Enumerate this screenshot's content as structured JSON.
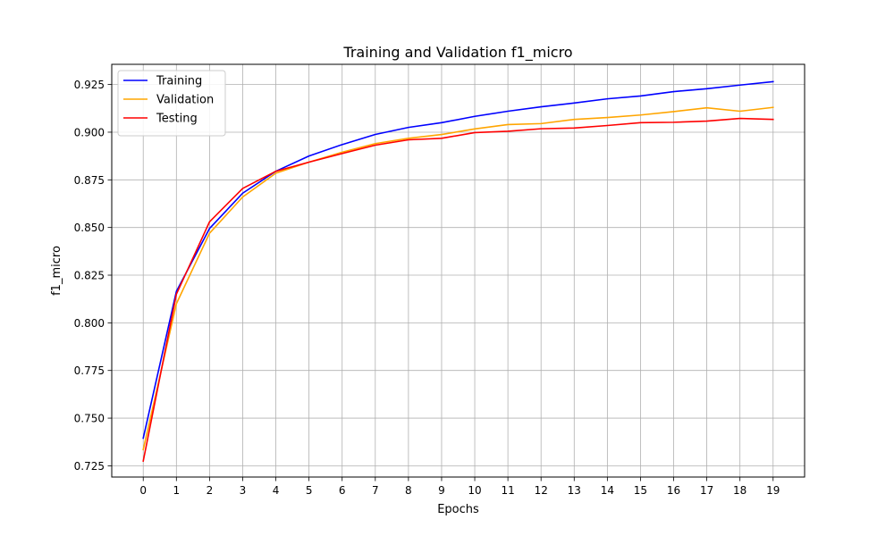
{
  "chart_data": {
    "type": "line",
    "title": "Training and Validation f1_micro",
    "xlabel": "Epochs",
    "ylabel": "f1_micro",
    "x": [
      0,
      1,
      2,
      3,
      4,
      5,
      6,
      7,
      8,
      9,
      10,
      11,
      12,
      13,
      14,
      15,
      16,
      17,
      18,
      19
    ],
    "x_ticks": [
      "0",
      "1",
      "2",
      "3",
      "4",
      "5",
      "6",
      "7",
      "8",
      "9",
      "10",
      "11",
      "12",
      "13",
      "14",
      "15",
      "16",
      "17",
      "18",
      "19"
    ],
    "y_ticks": [
      "0.725",
      "0.750",
      "0.775",
      "0.800",
      "0.825",
      "0.850",
      "0.875",
      "0.900",
      "0.925"
    ],
    "y_tick_values": [
      0.725,
      0.75,
      0.775,
      0.8,
      0.825,
      0.85,
      0.875,
      0.9,
      0.925
    ],
    "xlim": [
      -0.95,
      19.95
    ],
    "ylim": [
      0.7191,
      0.9356
    ],
    "grid": true,
    "legend_position": "top-left",
    "series": [
      {
        "name": "Training",
        "color": "#0000ff",
        "values": [
          0.7395,
          0.8165,
          0.8495,
          0.868,
          0.8795,
          0.8875,
          0.8935,
          0.8988,
          0.9025,
          0.905,
          0.9083,
          0.911,
          0.9133,
          0.9153,
          0.9175,
          0.919,
          0.9213,
          0.9228,
          0.9247,
          0.9265
        ]
      },
      {
        "name": "Validation",
        "color": "#ffa500",
        "values": [
          0.7335,
          0.81,
          0.847,
          0.866,
          0.8785,
          0.8843,
          0.8895,
          0.894,
          0.8968,
          0.8988,
          0.9017,
          0.904,
          0.9045,
          0.9067,
          0.9077,
          0.909,
          0.9108,
          0.9128,
          0.911,
          0.913
        ]
      },
      {
        "name": "Testing",
        "color": "#ff0000",
        "values": [
          0.7275,
          0.815,
          0.853,
          0.8705,
          0.8795,
          0.8843,
          0.8888,
          0.8932,
          0.896,
          0.8968,
          0.8998,
          0.9005,
          0.9018,
          0.9022,
          0.9035,
          0.905,
          0.9052,
          0.9058,
          0.9072,
          0.9067
        ]
      }
    ]
  }
}
